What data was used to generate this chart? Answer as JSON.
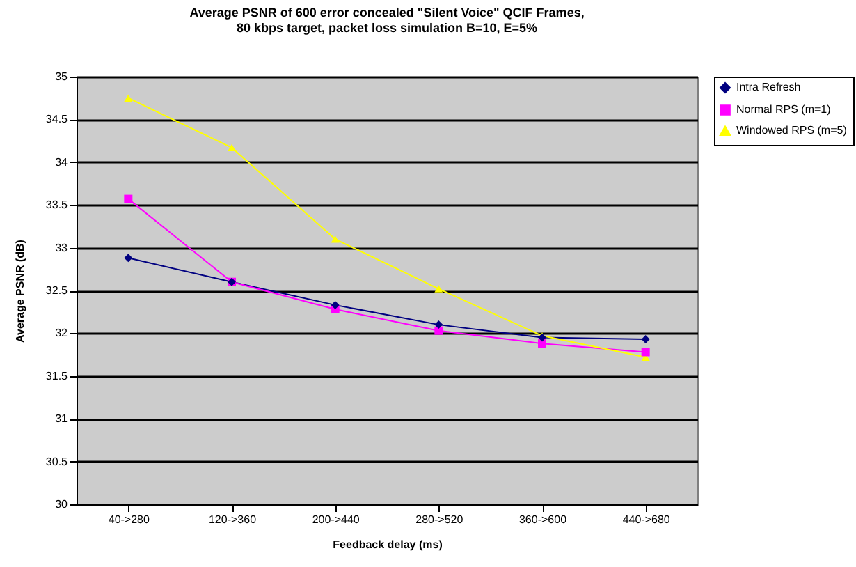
{
  "chart_data": {
    "type": "line",
    "title": "Average PSNR of 600 error concealed \"Silent Voice\" QCIF Frames,\n80 kbps target, packet loss simulation B=10, E=5%",
    "xlabel": "Feedback delay (ms)",
    "ylabel": "Average PSNR (dB)",
    "categories": [
      "40->280",
      "120->360",
      "200->440",
      "280->520",
      "360->600",
      "440->680"
    ],
    "series": [
      {
        "name": "Intra Refresh",
        "color": "#000080",
        "marker": "diamond",
        "values": [
          32.88,
          32.6,
          32.33,
          32.1,
          31.95,
          31.93
        ]
      },
      {
        "name": "Normal RPS (m=1)",
        "color": "#ff00ff",
        "marker": "square",
        "values": [
          33.57,
          32.6,
          32.28,
          32.03,
          31.88,
          31.78
        ]
      },
      {
        "name": "Windowed RPS (m=5)",
        "color": "#ffff00",
        "marker": "triangle",
        "values": [
          34.75,
          34.17,
          33.1,
          32.52,
          31.97,
          31.72
        ]
      }
    ],
    "ylim": [
      30,
      35
    ],
    "yticks": [
      30,
      30.5,
      31,
      31.5,
      32,
      32.5,
      33,
      33.5,
      34,
      34.5,
      35
    ],
    "grid": "y",
    "legend": "right"
  }
}
